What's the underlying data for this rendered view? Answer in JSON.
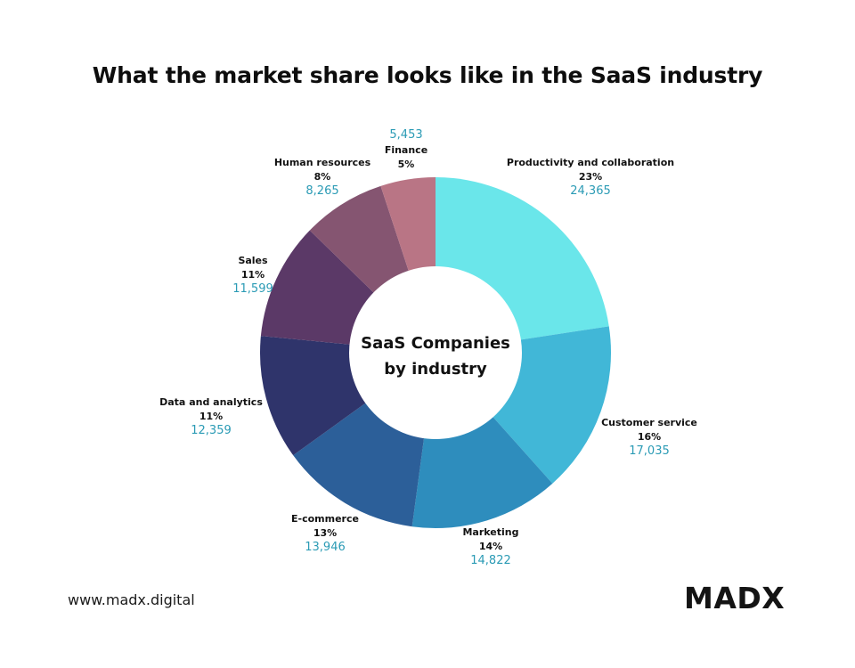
{
  "page": {
    "title": "What the market share looks like in the SaaS industry"
  },
  "chart_data": {
    "type": "pie",
    "variant": "donut",
    "center_label": [
      "SaaS Companies",
      "by industry"
    ],
    "slices": [
      {
        "name": "Productivity and collaboration",
        "percent_label": "23%",
        "value": 24365,
        "value_label": "24,365",
        "color": "#6ae6ea"
      },
      {
        "name": "Customer service",
        "percent_label": "16%",
        "value": 17035,
        "value_label": "17,035",
        "color": "#41b7d7"
      },
      {
        "name": "Marketing",
        "percent_label": "14%",
        "value": 14822,
        "value_label": "14,822",
        "color": "#2e8dbd"
      },
      {
        "name": "E-commerce",
        "percent_label": "13%",
        "value": 13946,
        "value_label": "13,946",
        "color": "#2c5f99"
      },
      {
        "name": "Data and analytics",
        "percent_label": "11%",
        "value": 12359,
        "value_label": "12,359",
        "color": "#2f346b"
      },
      {
        "name": "Sales",
        "percent_label": "11%",
        "value": 11599,
        "value_label": "11,599",
        "color": "#5b3967"
      },
      {
        "name": "Human resources",
        "percent_label": "8%",
        "value": 8265,
        "value_label": "8,265",
        "color": "#855571"
      },
      {
        "name": "Finance",
        "percent_label": "5%",
        "value": 5453,
        "value_label": "5,453",
        "color": "#b97585"
      }
    ],
    "value_label_color": "#2b9bb5"
  },
  "footer": {
    "url": "www.madx.digital",
    "logo": "MADX"
  }
}
